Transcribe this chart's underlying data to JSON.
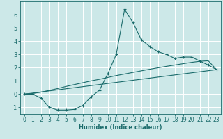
{
  "xlabel": "Humidex (Indice chaleur)",
  "ylabel": "",
  "bg_color": "#cce8e8",
  "grid_color": "#ffffff",
  "line_color": "#1a6b6b",
  "marker": "+",
  "xlim": [
    -0.5,
    23.5
  ],
  "ylim": [
    -1.5,
    7.0
  ],
  "xticks": [
    0,
    1,
    2,
    3,
    4,
    5,
    6,
    7,
    8,
    9,
    10,
    11,
    12,
    13,
    14,
    15,
    16,
    17,
    18,
    19,
    20,
    21,
    22,
    23
  ],
  "yticks": [
    -1,
    0,
    1,
    2,
    3,
    4,
    5,
    6
  ],
  "curve1_x": [
    0,
    1,
    2,
    3,
    4,
    5,
    6,
    7,
    8,
    9,
    10,
    11,
    12,
    13,
    14,
    15,
    16,
    17,
    18,
    19,
    20,
    21,
    22,
    23
  ],
  "curve1_y": [
    0.0,
    0.0,
    -0.3,
    -1.0,
    -1.2,
    -1.2,
    -1.15,
    -0.85,
    -0.2,
    0.3,
    1.55,
    3.0,
    6.4,
    5.4,
    4.1,
    3.6,
    3.2,
    3.0,
    2.7,
    2.8,
    2.8,
    2.5,
    2.2,
    1.85
  ],
  "curve2_x": [
    0,
    23
  ],
  "curve2_y": [
    0.0,
    1.85
  ],
  "curve3_x": [
    0,
    1,
    2,
    3,
    4,
    5,
    6,
    7,
    8,
    9,
    10,
    11,
    12,
    13,
    14,
    15,
    16,
    17,
    18,
    19,
    20,
    21,
    22,
    23
  ],
  "curve3_y": [
    0.0,
    0.05,
    0.15,
    0.28,
    0.42,
    0.58,
    0.72,
    0.86,
    1.0,
    1.12,
    1.26,
    1.4,
    1.52,
    1.64,
    1.76,
    1.88,
    1.99,
    2.1,
    2.2,
    2.3,
    2.4,
    2.48,
    2.52,
    1.85
  ],
  "xlabel_fontsize": 6,
  "tick_fontsize": 5.5
}
